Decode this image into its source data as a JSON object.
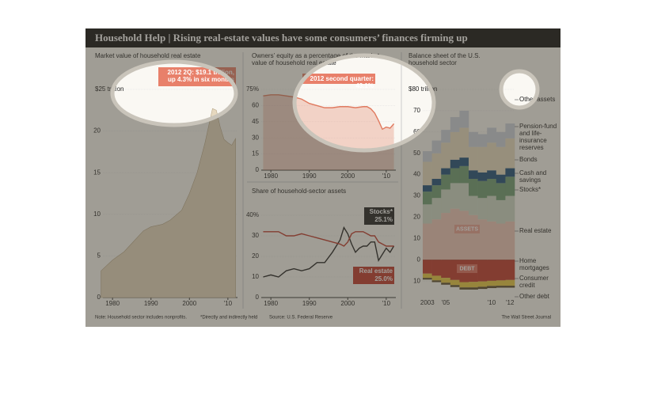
{
  "title": "Household Help | Rising real-estate values have some consumers’ finances firming up",
  "footer": {
    "note": "Note: Household sector includes nonprofits.",
    "footnote": "*Directly and indirectly held",
    "source": "Source: U.S. Federal Reserve",
    "credit": "The Wall Street Journal"
  },
  "chart_data": [
    {
      "type": "area",
      "title": "Market value of household real estate",
      "color": "#e6d8bf",
      "x": [
        1977,
        1980,
        1983,
        1985,
        1988,
        1990,
        1993,
        1995,
        1998,
        2000,
        2002,
        2004,
        2006,
        2007,
        2008,
        2009,
        2010,
        2011,
        2012
      ],
      "values": [
        3.2,
        4.5,
        5.5,
        6.5,
        8,
        8.5,
        8.8,
        9.3,
        10.5,
        12.5,
        15,
        18.5,
        22.7,
        22.5,
        20.5,
        19,
        18.6,
        18.3,
        19.1
      ],
      "xlim": [
        1977.5,
        2012.5
      ],
      "ylim": [
        0,
        25
      ],
      "xticks": [
        1980,
        1990,
        2000,
        {
          "value": 2010,
          "label": "'10"
        }
      ],
      "yticks": [
        0,
        5,
        10,
        15,
        20,
        {
          "value": 25,
          "label": "$25 trillion"
        }
      ],
      "annotation": "2012 2Q: $19.1 trillion, up 4.3% in six months"
    },
    {
      "type": "line",
      "title": "Owners’ equity as a percentage of the market value of household real estate",
      "color": "#e07a5f",
      "fill": true,
      "x": [
        1978,
        1980,
        1982,
        1984,
        1986,
        1988,
        1990,
        1992,
        1994,
        1996,
        1998,
        2000,
        2002,
        2004,
        2005,
        2006,
        2007,
        2008,
        2009,
        2010,
        2011,
        2012
      ],
      "values": [
        69,
        70,
        70,
        69,
        68,
        66,
        62,
        60,
        58,
        58,
        59,
        59,
        58,
        59,
        59,
        57,
        53,
        46,
        38,
        40,
        39,
        43.1
      ],
      "xlim": [
        1977.5,
        2012.5
      ],
      "ylim": [
        0,
        75
      ],
      "xticks": [
        1980,
        1990,
        2000,
        {
          "value": 2010,
          "label": "'10"
        }
      ],
      "yticks": [
        0,
        15,
        30,
        45,
        60,
        {
          "value": 75,
          "label": "75%"
        }
      ],
      "annotation": "2012 second quarter: 43.1%"
    },
    {
      "type": "line",
      "title": "Share of household-sector assets",
      "fill": false,
      "x": [
        1978,
        1980,
        1982,
        1984,
        1986,
        1988,
        1990,
        1992,
        1994,
        1996,
        1998,
        1999,
        2000,
        2001,
        2002,
        2003,
        2004,
        2005,
        2006,
        2007,
        2008,
        2009,
        2010,
        2011,
        2012
      ],
      "series": [
        {
          "name": "Stocks*",
          "color": "#222222",
          "end_label": "25.1%",
          "values": [
            10,
            11,
            10,
            13,
            14,
            13,
            14,
            17,
            17,
            22,
            28,
            34,
            31,
            26,
            22,
            24,
            25,
            25,
            27,
            27,
            18,
            21,
            24,
            22,
            25.1
          ]
        },
        {
          "name": "Real estate",
          "color": "#c0392b",
          "end_label": "25.0%",
          "values": [
            32,
            32,
            32,
            30,
            30,
            31,
            30,
            29,
            28,
            27,
            26,
            25,
            27,
            31,
            32,
            32,
            32,
            31,
            30,
            30,
            27,
            26,
            25,
            25,
            25.0
          ]
        }
      ],
      "xlim": [
        1977.5,
        2012.5
      ],
      "ylim": [
        0,
        40
      ],
      "xticks": [
        1980,
        1990,
        2000,
        {
          "value": 2010,
          "label": "'10"
        }
      ],
      "yticks": [
        0,
        10,
        20,
        30,
        {
          "value": 40,
          "label": "40%"
        }
      ]
    },
    {
      "type": "stacked_bar",
      "title": "Balance sheet of the U.S. household sector",
      "categories": [
        "2003",
        null,
        "'05",
        null,
        null,
        null,
        null,
        "'10",
        null,
        "'12"
      ],
      "series": [
        {
          "name": "Real estate",
          "color": "#efc7b8",
          "values": [
            17,
            19,
            22,
            24,
            23,
            21,
            19,
            18,
            17,
            18
          ]
        },
        {
          "name": "Stocks*",
          "color": "#cfd9c6",
          "values": [
            9,
            10,
            11,
            12,
            13,
            9,
            10,
            12,
            11,
            12
          ]
        },
        {
          "name": "Cash and savings",
          "color": "#6e9c72",
          "values": [
            6,
            6,
            7,
            7,
            8,
            8,
            8,
            8,
            8,
            9
          ]
        },
        {
          "name": "Bonds",
          "color": "#1f4e79",
          "values": [
            3,
            3,
            3,
            4,
            4,
            4,
            4,
            4,
            4,
            4
          ]
        },
        {
          "name": "Pension-fund and life-insurance reserves",
          "color": "#e8dcc0",
          "values": [
            11,
            12,
            12,
            13,
            14,
            11,
            12,
            13,
            13,
            14
          ]
        },
        {
          "name": "Other assets",
          "color": "#cdd3dd",
          "values": [
            5,
            6,
            6,
            7,
            8,
            7,
            6,
            7,
            7,
            7
          ]
        },
        {
          "name": "Home mortgages",
          "color": "#c0392b",
          "values": [
            -6.5,
            -7.5,
            -8.5,
            -9.5,
            -10.5,
            -10.4,
            -10.2,
            -9.9,
            -9.7,
            -9.5
          ]
        },
        {
          "name": "Consumer credit",
          "color": "#e8c840",
          "values": [
            -2,
            -2.2,
            -2.3,
            -2.4,
            -2.5,
            -2.6,
            -2.5,
            -2.4,
            -2.5,
            -2.7
          ]
        },
        {
          "name": "Other debt",
          "color": "#5a4a2a",
          "values": [
            -0.8,
            -0.8,
            -0.9,
            -0.9,
            -1,
            -1,
            -1,
            -1,
            -0.9,
            -0.9
          ]
        }
      ],
      "ylim": [
        -17,
        80
      ],
      "yticks": [
        {
          "value": -10,
          "label": "10"
        },
        0,
        10,
        20,
        30,
        40,
        50,
        60,
        70,
        {
          "value": 80,
          "label": "$80 trillion"
        }
      ],
      "asset_label": "ASSETS",
      "debt_label": "DEBT"
    }
  ]
}
